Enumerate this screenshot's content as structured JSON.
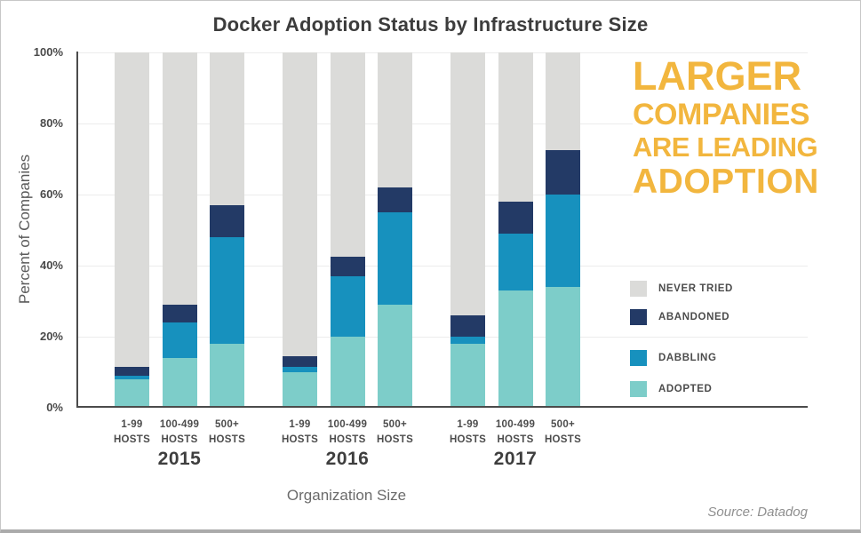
{
  "title": "Docker Adoption Status by Infrastructure Size",
  "y_axis": {
    "label": "Percent of Companies",
    "ticks": [
      {
        "value": 0,
        "label": "0%"
      },
      {
        "value": 20,
        "label": "20%"
      },
      {
        "value": 40,
        "label": "40%"
      },
      {
        "value": 60,
        "label": "60%"
      },
      {
        "value": 80,
        "label": "80%"
      },
      {
        "value": 100,
        "label": "100%"
      }
    ]
  },
  "x_axis": {
    "label": "Organization Size",
    "hosts_suffix": "HOSTS"
  },
  "headline": {
    "lines": [
      "LARGER",
      "COMPANIES",
      "ARE LEADING",
      "ADOPTION"
    ],
    "color": "#F2B63E"
  },
  "legend": [
    {
      "key": "never_tried",
      "label": "NEVER TRIED"
    },
    {
      "key": "abandoned",
      "label": "ABANDONED"
    },
    {
      "key": "dabbling",
      "label": "DABBLING"
    },
    {
      "key": "adopted",
      "label": "ADOPTED"
    }
  ],
  "source": "Source: Datadog",
  "chart_data": {
    "type": "bar",
    "stacked": true,
    "title": "Docker Adoption Status by Infrastructure Size",
    "xlabel": "Organization Size",
    "ylabel": "Percent of Companies",
    "unit": "%",
    "ylim": [
      0,
      100
    ],
    "grid": true,
    "legend_position": "right",
    "series_order_bottom_to_top": [
      "adopted",
      "dabbling",
      "abandoned",
      "never_tried"
    ],
    "colors": {
      "adopted": "#7DCDC9",
      "dabbling": "#1791BE",
      "abandoned": "#233A66",
      "never_tried": "#DBDBD9"
    },
    "groups": [
      {
        "year": "2015",
        "bars": [
          {
            "hosts": "1-99",
            "adopted": 8,
            "dabbling": 1,
            "abandoned": 2.5,
            "never_tried": 88.5
          },
          {
            "hosts": "100-499",
            "adopted": 14,
            "dabbling": 10,
            "abandoned": 5,
            "never_tried": 71
          },
          {
            "hosts": "500+",
            "adopted": 18,
            "dabbling": 30,
            "abandoned": 9,
            "never_tried": 43
          }
        ]
      },
      {
        "year": "2016",
        "bars": [
          {
            "hosts": "1-99",
            "adopted": 10,
            "dabbling": 1.5,
            "abandoned": 3,
            "never_tried": 85.5
          },
          {
            "hosts": "100-499",
            "adopted": 20,
            "dabbling": 17,
            "abandoned": 5.5,
            "never_tried": 57.5
          },
          {
            "hosts": "500+",
            "adopted": 29,
            "dabbling": 26,
            "abandoned": 7,
            "never_tried": 38
          }
        ]
      },
      {
        "year": "2017",
        "bars": [
          {
            "hosts": "1-99",
            "adopted": 18,
            "dabbling": 2,
            "abandoned": 6,
            "never_tried": 74
          },
          {
            "hosts": "100-499",
            "adopted": 33,
            "dabbling": 16,
            "abandoned": 9,
            "never_tried": 42
          },
          {
            "hosts": "500+",
            "adopted": 34,
            "dabbling": 26,
            "abandoned": 12.5,
            "never_tried": 27.5
          }
        ]
      }
    ]
  }
}
